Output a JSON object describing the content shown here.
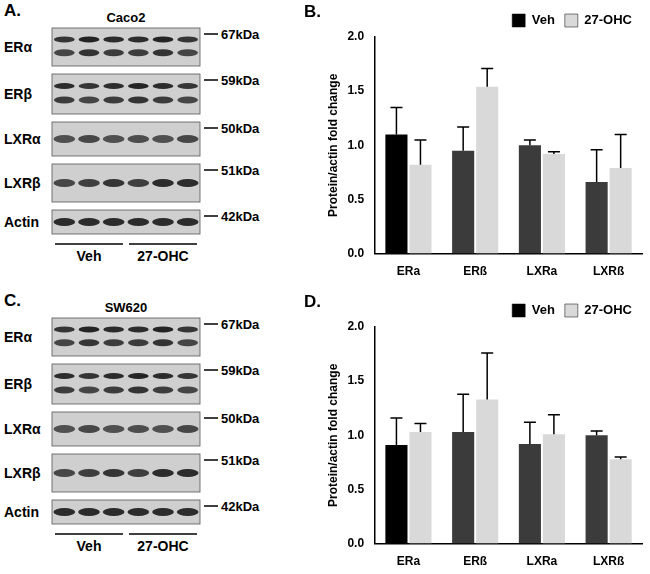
{
  "blots": [
    {
      "letter": "A.",
      "cell_line": "Caco2",
      "rows": [
        {
          "label": "ERα",
          "mw": "67kDa"
        },
        {
          "label": "ERβ",
          "mw": "59kDa"
        },
        {
          "label": "LXRα",
          "mw": "50kDa"
        },
        {
          "label": "LXRβ",
          "mw": "51kDa"
        },
        {
          "label": "Actin",
          "mw": "42kDa"
        }
      ],
      "groups": [
        "Veh",
        "27-OHC"
      ]
    },
    {
      "letter": "C.",
      "cell_line": "SW620",
      "rows": [
        {
          "label": "ERα",
          "mw": "67kDa"
        },
        {
          "label": "ERβ",
          "mw": "59kDa"
        },
        {
          "label": "LXRα",
          "mw": "50kDa"
        },
        {
          "label": "LXRβ",
          "mw": "51kDa"
        },
        {
          "label": "Actin",
          "mw": "42kDa"
        }
      ],
      "groups": [
        "Veh",
        "27-OHC"
      ]
    }
  ],
  "chart_data": [
    {
      "type": "bar",
      "letter": "B.",
      "y_label": "Protein/actin fold change",
      "categories": [
        "ERa",
        "ERß",
        "LXRa",
        "LXRß"
      ],
      "series": [
        {
          "name": "Veh",
          "color": "#000000",
          "colors": [
            "#000000",
            "#3b3b3b",
            "#3b3b3b",
            "#3b3b3b"
          ],
          "values": [
            1.1,
            0.95,
            1.0,
            0.66
          ],
          "errors": [
            0.25,
            0.22,
            0.05,
            0.3
          ]
        },
        {
          "name": "27-OHC",
          "color": "#d9d9d9",
          "values": [
            0.82,
            1.54,
            0.92,
            0.79
          ],
          "errors": [
            0.23,
            0.17,
            0.02,
            0.31
          ]
        }
      ],
      "ylim": [
        0,
        2
      ],
      "yticks": [
        {
          "value": 0,
          "label": "0.0"
        },
        {
          "value": 0.5,
          "label": "0.5"
        },
        {
          "value": 1,
          "label": "1.0"
        },
        {
          "value": 1.5,
          "label": "1.5"
        },
        {
          "value": 2,
          "label": "2.0"
        }
      ],
      "grid": false,
      "legend": "upper right"
    },
    {
      "type": "bar",
      "letter": "D.",
      "y_label": "Protein/actin fold change",
      "categories": [
        "ERa",
        "ERß",
        "LXRa",
        "LXRß"
      ],
      "series": [
        {
          "name": "Veh",
          "color": "#000000",
          "colors": [
            "#000000",
            "#3b3b3b",
            "#3b3b3b",
            "#3b3b3b"
          ],
          "values": [
            0.91,
            1.03,
            0.92,
            1.0
          ],
          "errors": [
            0.25,
            0.35,
            0.2,
            0.04
          ]
        },
        {
          "name": "27-OHC",
          "color": "#d9d9d9",
          "values": [
            1.03,
            1.33,
            1.01,
            0.78
          ],
          "errors": [
            0.08,
            0.43,
            0.18,
            0.02
          ]
        }
      ],
      "ylim": [
        0,
        2
      ],
      "yticks": [
        {
          "value": 0,
          "label": "0.0"
        },
        {
          "value": 0.5,
          "label": "0.5"
        },
        {
          "value": 1,
          "label": "1.0"
        },
        {
          "value": 1.5,
          "label": "1.5"
        },
        {
          "value": 2,
          "label": "2.0"
        }
      ],
      "grid": false,
      "legend": "upper right"
    }
  ]
}
